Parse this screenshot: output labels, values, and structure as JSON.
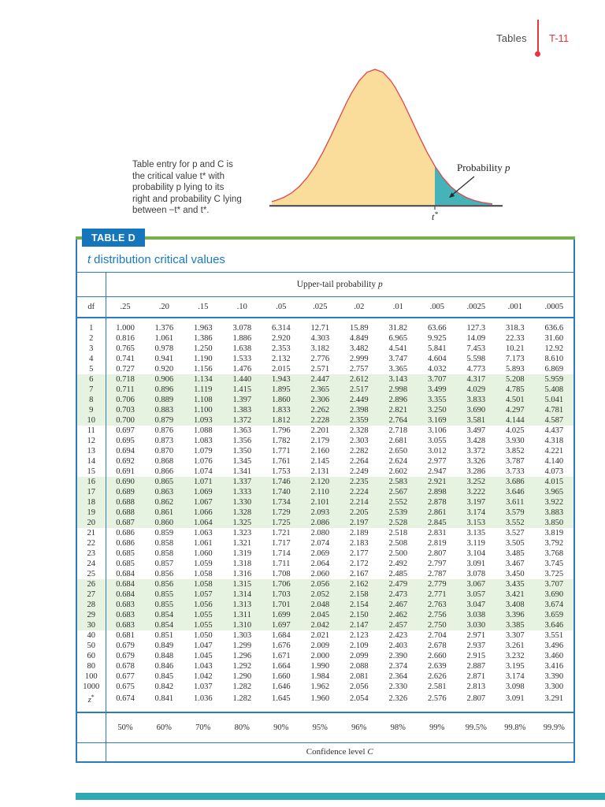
{
  "header": {
    "section": "Tables",
    "page_number": "T-11"
  },
  "figure": {
    "caption_lines": [
      "Table entry for p and C is",
      "the critical value t* with",
      "probability p lying to its",
      "right and probability C lying",
      "between −t* and t*."
    ],
    "probability_label_prefix": "Probability ",
    "probability_label_var": "p",
    "axis_var": "t",
    "axis_sup": "*"
  },
  "table": {
    "chip": "TABLE D",
    "title_prefix": "t",
    "title_rest": "distribution critical values",
    "upper_header_prefix": "Upper-tail probability ",
    "upper_header_var": "p",
    "df_header": "df",
    "p_levels": [
      ".25",
      ".20",
      ".15",
      ".10",
      ".05",
      ".025",
      ".02",
      ".01",
      ".005",
      ".0025",
      ".001",
      ".0005"
    ],
    "rows": [
      {
        "df": "1",
        "values": [
          "1.000",
          "1.376",
          "1.963",
          "3.078",
          "6.314",
          "12.71",
          "15.89",
          "31.82",
          "63.66",
          "127.3",
          "318.3",
          "636.6"
        ]
      },
      {
        "df": "2",
        "values": [
          "0.816",
          "1.061",
          "1.386",
          "1.886",
          "2.920",
          "4.303",
          "4.849",
          "6.965",
          "9.925",
          "14.09",
          "22.33",
          "31.60"
        ]
      },
      {
        "df": "3",
        "values": [
          "0.765",
          "0.978",
          "1.250",
          "1.638",
          "2.353",
          "3.182",
          "3.482",
          "4.541",
          "5.841",
          "7.453",
          "10.21",
          "12.92"
        ]
      },
      {
        "df": "4",
        "values": [
          "0.741",
          "0.941",
          "1.190",
          "1.533",
          "2.132",
          "2.776",
          "2.999",
          "3.747",
          "4.604",
          "5.598",
          "7.173",
          "8.610"
        ]
      },
      {
        "df": "5",
        "values": [
          "0.727",
          "0.920",
          "1.156",
          "1.476",
          "2.015",
          "2.571",
          "2.757",
          "3.365",
          "4.032",
          "4.773",
          "5.893",
          "6.869"
        ]
      },
      {
        "df": "6",
        "values": [
          "0.718",
          "0.906",
          "1.134",
          "1.440",
          "1.943",
          "2.447",
          "2.612",
          "3.143",
          "3.707",
          "4.317",
          "5.208",
          "5.959"
        ]
      },
      {
        "df": "7",
        "values": [
          "0.711",
          "0.896",
          "1.119",
          "1.415",
          "1.895",
          "2.365",
          "2.517",
          "2.998",
          "3.499",
          "4.029",
          "4.785",
          "5.408"
        ]
      },
      {
        "df": "8",
        "values": [
          "0.706",
          "0.889",
          "1.108",
          "1.397",
          "1.860",
          "2.306",
          "2.449",
          "2.896",
          "3.355",
          "3.833",
          "4.501",
          "5.041"
        ]
      },
      {
        "df": "9",
        "values": [
          "0.703",
          "0.883",
          "1.100",
          "1.383",
          "1.833",
          "2.262",
          "2.398",
          "2.821",
          "3.250",
          "3.690",
          "4.297",
          "4.781"
        ]
      },
      {
        "df": "10",
        "values": [
          "0.700",
          "0.879",
          "1.093",
          "1.372",
          "1.812",
          "2.228",
          "2.359",
          "2.764",
          "3.169",
          "3.581",
          "4.144",
          "4.587"
        ]
      },
      {
        "df": "11",
        "values": [
          "0.697",
          "0.876",
          "1.088",
          "1.363",
          "1.796",
          "2.201",
          "2.328",
          "2.718",
          "3.106",
          "3.497",
          "4.025",
          "4.437"
        ]
      },
      {
        "df": "12",
        "values": [
          "0.695",
          "0.873",
          "1.083",
          "1.356",
          "1.782",
          "2.179",
          "2.303",
          "2.681",
          "3.055",
          "3.428",
          "3.930",
          "4.318"
        ]
      },
      {
        "df": "13",
        "values": [
          "0.694",
          "0.870",
          "1.079",
          "1.350",
          "1.771",
          "2.160",
          "2.282",
          "2.650",
          "3.012",
          "3.372",
          "3.852",
          "4.221"
        ]
      },
      {
        "df": "14",
        "values": [
          "0.692",
          "0.868",
          "1.076",
          "1.345",
          "1.761",
          "2.145",
          "2.264",
          "2.624",
          "2.977",
          "3.326",
          "3.787",
          "4.140"
        ]
      },
      {
        "df": "15",
        "values": [
          "0.691",
          "0.866",
          "1.074",
          "1.341",
          "1.753",
          "2.131",
          "2.249",
          "2.602",
          "2.947",
          "3.286",
          "3.733",
          "4.073"
        ]
      },
      {
        "df": "16",
        "values": [
          "0.690",
          "0.865",
          "1.071",
          "1.337",
          "1.746",
          "2.120",
          "2.235",
          "2.583",
          "2.921",
          "3.252",
          "3.686",
          "4.015"
        ]
      },
      {
        "df": "17",
        "values": [
          "0.689",
          "0.863",
          "1.069",
          "1.333",
          "1.740",
          "2.110",
          "2.224",
          "2.567",
          "2.898",
          "3.222",
          "3.646",
          "3.965"
        ]
      },
      {
        "df": "18",
        "values": [
          "0.688",
          "0.862",
          "1.067",
          "1.330",
          "1.734",
          "2.101",
          "2.214",
          "2.552",
          "2.878",
          "3.197",
          "3.611",
          "3.922"
        ]
      },
      {
        "df": "19",
        "values": [
          "0.688",
          "0.861",
          "1.066",
          "1.328",
          "1.729",
          "2.093",
          "2.205",
          "2.539",
          "2.861",
          "3.174",
          "3.579",
          "3.883"
        ]
      },
      {
        "df": "20",
        "values": [
          "0.687",
          "0.860",
          "1.064",
          "1.325",
          "1.725",
          "2.086",
          "2.197",
          "2.528",
          "2.845",
          "3.153",
          "3.552",
          "3.850"
        ]
      },
      {
        "df": "21",
        "values": [
          "0.686",
          "0.859",
          "1.063",
          "1.323",
          "1.721",
          "2.080",
          "2.189",
          "2.518",
          "2.831",
          "3.135",
          "3.527",
          "3.819"
        ]
      },
      {
        "df": "22",
        "values": [
          "0.686",
          "0.858",
          "1.061",
          "1.321",
          "1.717",
          "2.074",
          "2.183",
          "2.508",
          "2.819",
          "3.119",
          "3.505",
          "3.792"
        ]
      },
      {
        "df": "23",
        "values": [
          "0.685",
          "0.858",
          "1.060",
          "1.319",
          "1.714",
          "2.069",
          "2.177",
          "2.500",
          "2.807",
          "3.104",
          "3.485",
          "3.768"
        ]
      },
      {
        "df": "24",
        "values": [
          "0.685",
          "0.857",
          "1.059",
          "1.318",
          "1.711",
          "2.064",
          "2.172",
          "2.492",
          "2.797",
          "3.091",
          "3.467",
          "3.745"
        ]
      },
      {
        "df": "25",
        "values": [
          "0.684",
          "0.856",
          "1.058",
          "1.316",
          "1.708",
          "2.060",
          "2.167",
          "2.485",
          "2.787",
          "3.078",
          "3.450",
          "3.725"
        ]
      },
      {
        "df": "26",
        "values": [
          "0.684",
          "0.856",
          "1.058",
          "1.315",
          "1.706",
          "2.056",
          "2.162",
          "2.479",
          "2.779",
          "3.067",
          "3.435",
          "3.707"
        ]
      },
      {
        "df": "27",
        "values": [
          "0.684",
          "0.855",
          "1.057",
          "1.314",
          "1.703",
          "2.052",
          "2.158",
          "2.473",
          "2.771",
          "3.057",
          "3.421",
          "3.690"
        ]
      },
      {
        "df": "28",
        "values": [
          "0.683",
          "0.855",
          "1.056",
          "1.313",
          "1.701",
          "2.048",
          "2.154",
          "2.467",
          "2.763",
          "3.047",
          "3.408",
          "3.674"
        ]
      },
      {
        "df": "29",
        "values": [
          "0.683",
          "0.854",
          "1.055",
          "1.311",
          "1.699",
          "2.045",
          "2.150",
          "2.462",
          "2.756",
          "3.038",
          "3.396",
          "3.659"
        ]
      },
      {
        "df": "30",
        "values": [
          "0.683",
          "0.854",
          "1.055",
          "1.310",
          "1.697",
          "2.042",
          "2.147",
          "2.457",
          "2.750",
          "3.030",
          "3.385",
          "3.646"
        ]
      },
      {
        "df": "40",
        "values": [
          "0.681",
          "0.851",
          "1.050",
          "1.303",
          "1.684",
          "2.021",
          "2.123",
          "2.423",
          "2.704",
          "2.971",
          "3.307",
          "3.551"
        ]
      },
      {
        "df": "50",
        "values": [
          "0.679",
          "0.849",
          "1.047",
          "1.299",
          "1.676",
          "2.009",
          "2.109",
          "2.403",
          "2.678",
          "2.937",
          "3.261",
          "3.496"
        ]
      },
      {
        "df": "60",
        "values": [
          "0.679",
          "0.848",
          "1.045",
          "1.296",
          "1.671",
          "2.000",
          "2.099",
          "2.390",
          "2.660",
          "2.915",
          "3.232",
          "3.460"
        ]
      },
      {
        "df": "80",
        "values": [
          "0.678",
          "0.846",
          "1.043",
          "1.292",
          "1.664",
          "1.990",
          "2.088",
          "2.374",
          "2.639",
          "2.887",
          "3.195",
          "3.416"
        ]
      },
      {
        "df": "100",
        "values": [
          "0.677",
          "0.845",
          "1.042",
          "1.290",
          "1.660",
          "1.984",
          "2.081",
          "2.364",
          "2.626",
          "2.871",
          "3.174",
          "3.390"
        ]
      },
      {
        "df": "1000",
        "values": [
          "0.675",
          "0.842",
          "1.037",
          "1.282",
          "1.646",
          "1.962",
          "2.056",
          "2.330",
          "2.581",
          "2.813",
          "3.098",
          "3.300"
        ]
      },
      {
        "df": "z*",
        "values": [
          "0.674",
          "0.841",
          "1.036",
          "1.282",
          "1.645",
          "1.960",
          "2.054",
          "2.326",
          "2.576",
          "2.807",
          "3.091",
          "3.291"
        ]
      }
    ],
    "confidence_levels": [
      "50%",
      "60%",
      "70%",
      "80%",
      "90%",
      "95%",
      "96%",
      "98%",
      "99%",
      "99.5%",
      "99.8%",
      "99.9%"
    ],
    "confidence_label_prefix": "Confidence level ",
    "confidence_label_var": "C"
  },
  "colors": {
    "rule_blue": "#2b7cbf",
    "chip_blue": "#1576bc",
    "title_blue": "#1a7abf",
    "green_bar": "#74b149",
    "row_band_green": "#e5f3e0",
    "accent_red": "#e8343c",
    "curve_red": "#e0474b",
    "curve_fill_tan": "#fadc9b",
    "tail_teal": "#45b3b8",
    "bottom_bar_teal": "#2fa9b6"
  }
}
